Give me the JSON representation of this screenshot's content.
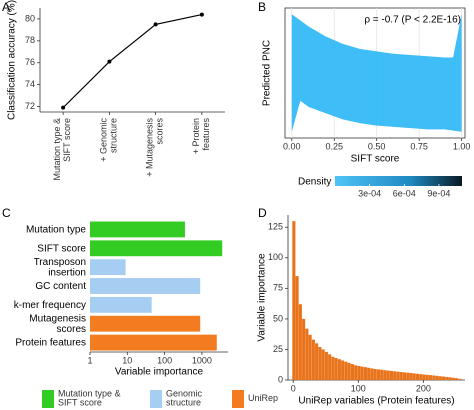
{
  "chart_data": [
    {
      "type": "line",
      "label": "A",
      "ylabel": "Classification accuracy (%)",
      "categories": [
        "Mutation type & SIFT score",
        "+ Genomic structure",
        "+ Mutagenesis scores",
        "+ Protein features"
      ],
      "values": [
        71.9,
        76.1,
        79.5,
        80.4
      ],
      "color": "#000000",
      "ylim": [
        71.5,
        81
      ],
      "yticks": [
        72,
        74,
        76,
        78,
        80
      ]
    },
    {
      "type": "density",
      "label": "B",
      "xlabel": "SIFT score",
      "ylabel": "Predicted PNC",
      "annotation": "ρ = -0.7 (P < 2.2E-16)",
      "color": "#29b6f6",
      "x": [
        0,
        0.05,
        0.1,
        0.2,
        0.3,
        0.4,
        0.5,
        0.6,
        0.7,
        0.8,
        0.9,
        0.95,
        1
      ],
      "y_high": [
        1,
        0.95,
        0.9,
        0.82,
        0.76,
        0.72,
        0.7,
        0.68,
        0.67,
        0.66,
        0.65,
        0.65,
        1
      ],
      "y_low": [
        0.05,
        0.3,
        0.25,
        0.2,
        0.15,
        0.12,
        0.1,
        0.09,
        0.08,
        0.07,
        0.07,
        0.06,
        0.05
      ],
      "xlim": [
        -0.04,
        1.02
      ],
      "ylim": [
        0,
        1.05
      ],
      "xticks": [
        {
          "value": 0,
          "label": "0.00"
        },
        {
          "value": 0.25,
          "label": "0.25"
        },
        {
          "value": 0.5,
          "label": "0.50"
        },
        {
          "value": 0.75,
          "label": "0.75"
        },
        {
          "value": 1,
          "label": "1.00"
        }
      ],
      "colorbar_title": "Density",
      "colorbar_lim": [
        0,
        0.0011
      ],
      "colorbar_ticks": [
        {
          "value": 0.0003,
          "label": "3e-04"
        },
        {
          "value": 0.0006,
          "label": "6e-04"
        },
        {
          "value": 0.0009,
          "label": "9e-04"
        }
      ]
    },
    {
      "type": "hbar",
      "label": "C",
      "xlabel": "Variable importance",
      "log_x": true,
      "categories": [
        "Mutation type",
        "SIFT score",
        "Transposon insertion",
        "GC content",
        "k-mer frequency",
        "Mutagenesis scores",
        "Protein features"
      ],
      "values": [
        350,
        3500,
        9,
        900,
        45,
        900,
        2500
      ],
      "colors": [
        "#33cc22",
        "#33cc22",
        "#a6cdf2",
        "#a6cdf2",
        "#a6cdf2",
        "#f47c20",
        "#f47c20"
      ],
      "xlim": [
        1,
        5000
      ],
      "xticks": [
        1,
        10,
        100,
        1000
      ],
      "legend": [
        {
          "name": "Mutation type & SIFT score",
          "color": "#33cc22"
        },
        {
          "name": "Genomic structure",
          "color": "#a6cdf2"
        },
        {
          "name": "UniRep",
          "color": "#f47c20"
        }
      ]
    },
    {
      "type": "bar",
      "label": "D",
      "xlabel": "UniRep variables (Protein features)",
      "ylabel": "Variable importance",
      "color": "#e8731a",
      "x": [
        1,
        6,
        11,
        16,
        21,
        26,
        31,
        36,
        41,
        46,
        51,
        56,
        61,
        66,
        71,
        76,
        81,
        86,
        91,
        96,
        101,
        106,
        111,
        116,
        121,
        126,
        131,
        136,
        141,
        146,
        151,
        156,
        161,
        166,
        171,
        176,
        181,
        186,
        191,
        196,
        201,
        206,
        211,
        216,
        221,
        226,
        231,
        236,
        241,
        246,
        251,
        256
      ],
      "values": [
        130,
        85,
        62,
        50,
        42,
        37,
        33,
        30,
        27,
        25,
        23,
        21,
        19,
        18,
        17,
        16,
        15,
        14,
        13,
        12,
        11.5,
        11,
        10.5,
        10,
        9.5,
        9,
        8.7,
        8.4,
        8,
        7.7,
        7.4,
        7.1,
        6.8,
        6.5,
        6.2,
        6,
        5.7,
        5.4,
        5.1,
        4.8,
        4.5,
        4.2,
        4,
        3.7,
        3.4,
        3.1,
        2.8,
        2.5,
        2.2,
        1.9,
        1.5,
        1
      ],
      "xlim": [
        -8,
        264
      ],
      "ylim": [
        0,
        135
      ],
      "xticks": [
        0,
        100,
        200
      ],
      "yticks": [
        0,
        25,
        50,
        75,
        100,
        125
      ]
    }
  ]
}
